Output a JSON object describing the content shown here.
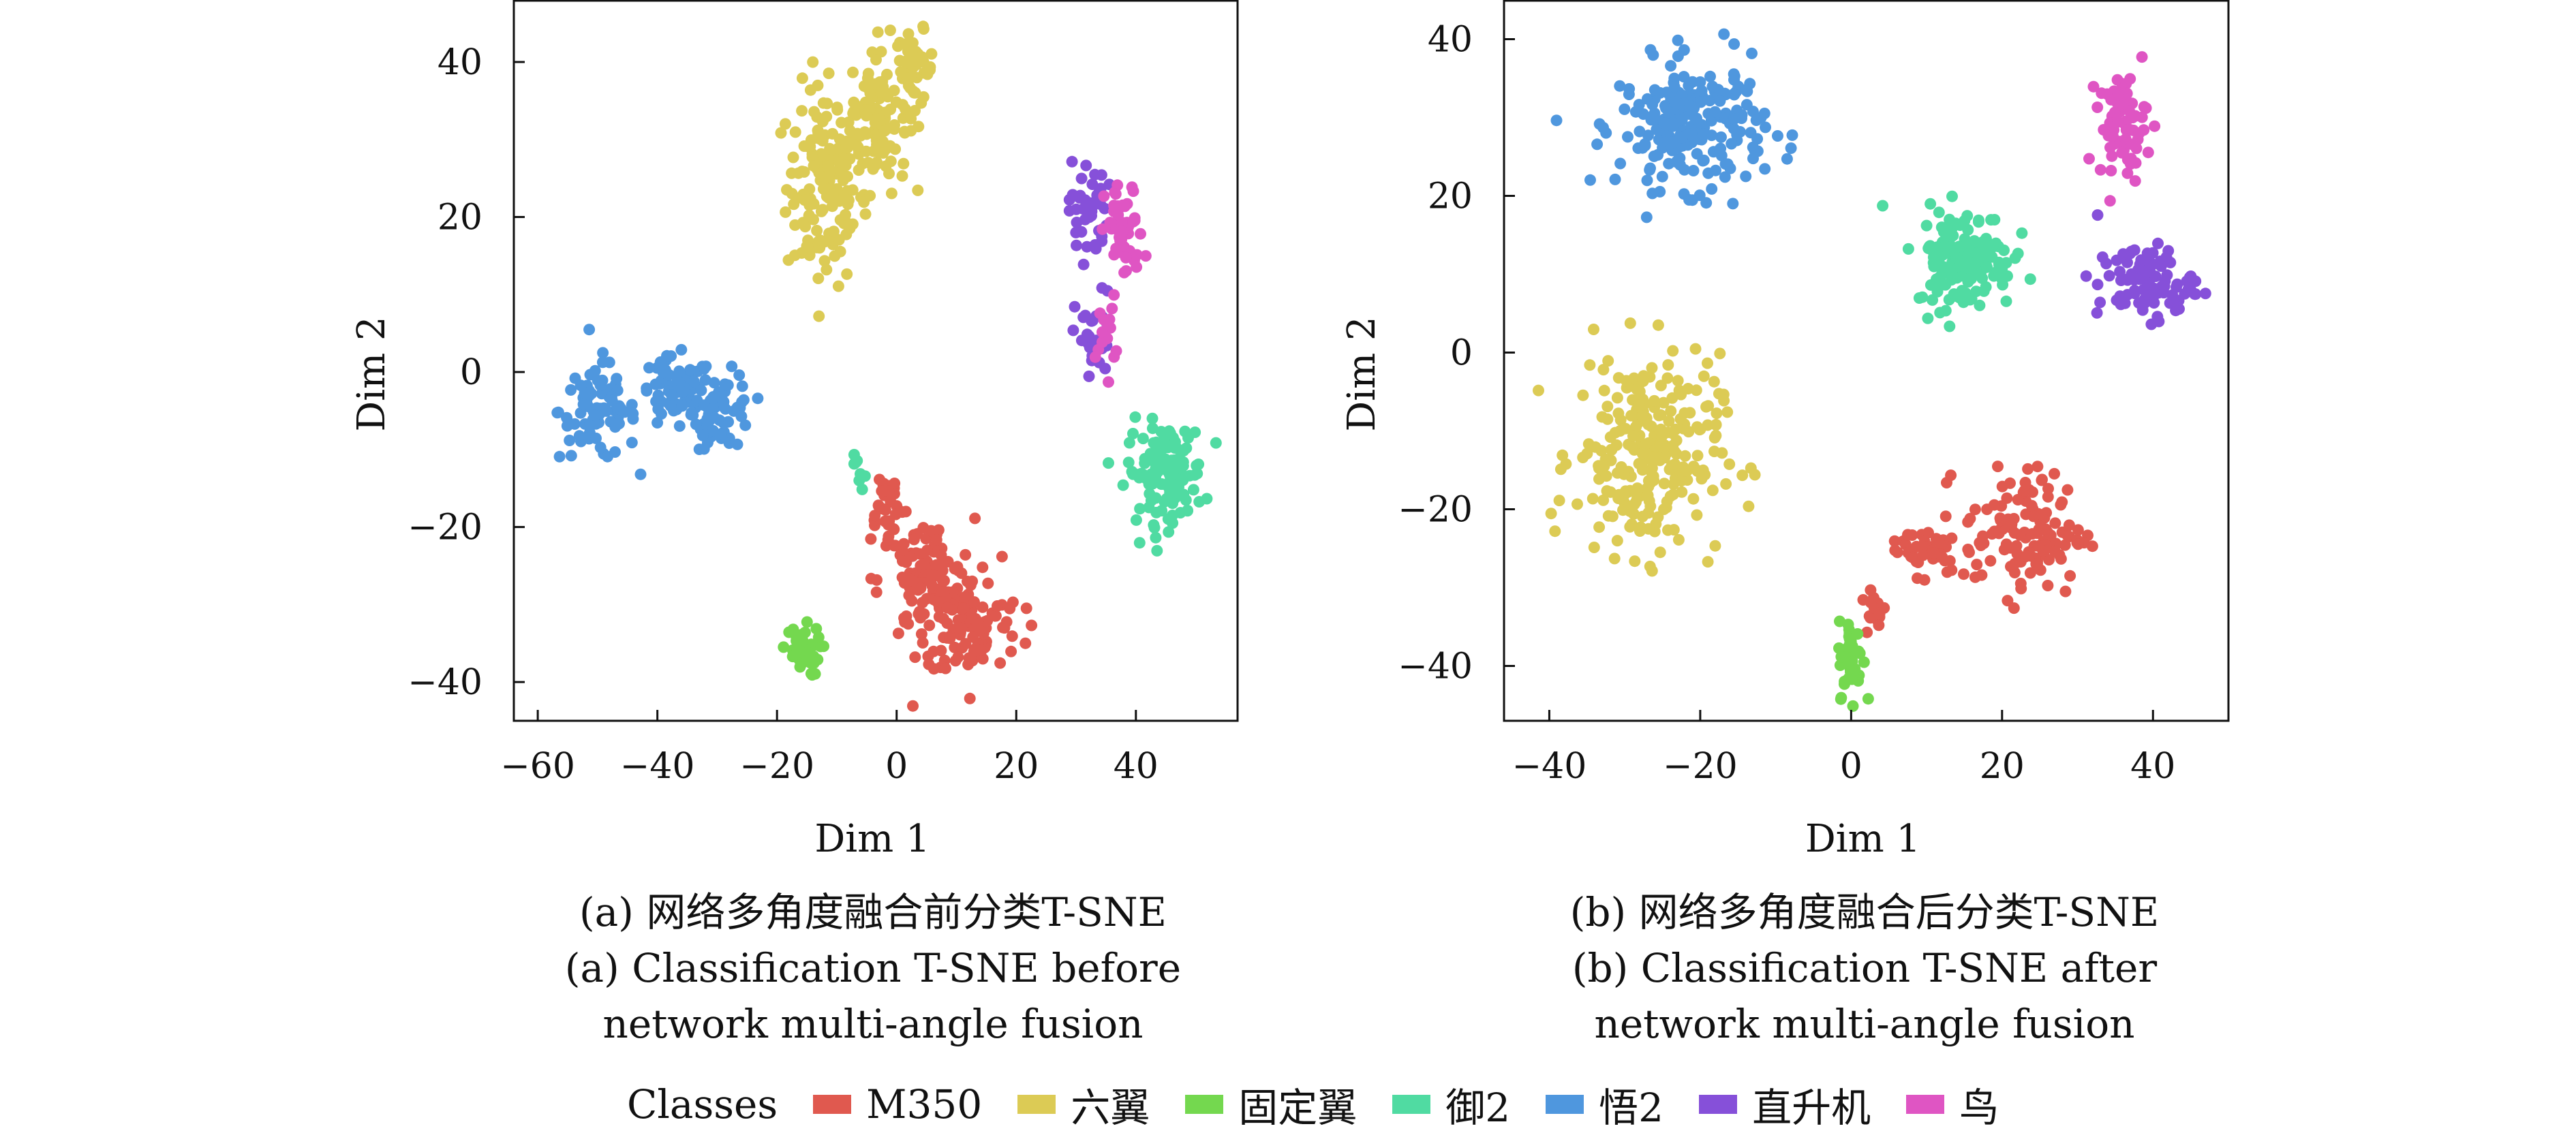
{
  "colors": {
    "M350": "#e0594f",
    "六翼": "#dccb55",
    "固定翼": "#74d84f",
    "御2": "#50dba2",
    "悟2": "#4f97de",
    "直升机": "#8650d9",
    "鸟": "#df55c3"
  },
  "legend": {
    "title": "Classes",
    "items": [
      "M350",
      "六翼",
      "固定翼",
      "御2",
      "悟2",
      "直升机",
      "鸟"
    ]
  },
  "captions": {
    "a": {
      "zh": "(a) 网络多角度融合前分类T-SNE",
      "en1": "(a) Classification T-SNE before",
      "en2": "network multi-angle fusion"
    },
    "b": {
      "zh": "(b) 网络多角度融合后分类T-SNE",
      "en1": "(b) Classification T-SNE after",
      "en2": "network multi-angle fusion"
    }
  },
  "chart_data": [
    {
      "type": "scatter",
      "xlabel": "Dim 1",
      "ylabel": "Dim 2",
      "xlim": [
        -64,
        57
      ],
      "ylim": [
        -45,
        48
      ],
      "xticks": [
        -60,
        -40,
        -20,
        0,
        20,
        40
      ],
      "yticks": [
        -40,
        -20,
        0,
        20,
        40
      ],
      "xtick_labels": [
        "−60",
        "−40",
        "−20",
        "0",
        "20",
        "40"
      ],
      "ytick_labels": [
        "−40",
        "−20",
        "0",
        "20",
        "40"
      ],
      "grid": false,
      "clusters": [
        {
          "name": "六翼",
          "center": [
            -12,
            24
          ],
          "spread": [
            4,
            8
          ],
          "count": 150
        },
        {
          "name": "六翼",
          "center": [
            -3,
            33
          ],
          "spread": [
            3,
            6
          ],
          "count": 110
        },
        {
          "name": "六翼",
          "center": [
            3,
            39
          ],
          "spread": [
            2,
            3
          ],
          "count": 40
        },
        {
          "name": "悟2",
          "center": [
            -50,
            -5
          ],
          "spread": [
            4,
            4
          ],
          "count": 80
        },
        {
          "name": "悟2",
          "center": [
            -37,
            -3
          ],
          "spread": [
            4,
            3
          ],
          "count": 70
        },
        {
          "name": "悟2",
          "center": [
            -29,
            -5
          ],
          "spread": [
            3,
            3
          ],
          "count": 60
        },
        {
          "name": "M350",
          "center": [
            5,
            -27
          ],
          "spread": [
            5,
            5
          ],
          "count": 120
        },
        {
          "name": "M350",
          "center": [
            13,
            -33
          ],
          "spread": [
            5,
            4
          ],
          "count": 90
        },
        {
          "name": "M350",
          "center": [
            -2,
            -17
          ],
          "spread": [
            2,
            3
          ],
          "count": 30
        },
        {
          "name": "固定翼",
          "center": [
            -16,
            -36
          ],
          "spread": [
            2,
            2
          ],
          "count": 40
        },
        {
          "name": "直升机",
          "center": [
            32,
            21
          ],
          "spread": [
            2,
            4
          ],
          "count": 40
        },
        {
          "name": "直升机",
          "center": [
            33,
            4
          ],
          "spread": [
            2,
            4
          ],
          "count": 35
        },
        {
          "name": "鸟",
          "center": [
            38,
            18
          ],
          "spread": [
            2,
            4
          ],
          "count": 50
        },
        {
          "name": "鸟",
          "center": [
            35,
            5
          ],
          "spread": [
            1,
            3
          ],
          "count": 15
        },
        {
          "name": "御2",
          "center": [
            45,
            -13
          ],
          "spread": [
            4,
            4
          ],
          "count": 130
        },
        {
          "name": "御2",
          "center": [
            -6,
            -14
          ],
          "spread": [
            1,
            2
          ],
          "count": 8
        }
      ]
    },
    {
      "type": "scatter",
      "xlabel": "Dim 1",
      "ylabel": "Dim 2",
      "xlim": [
        -46,
        50
      ],
      "ylim": [
        -47,
        45
      ],
      "xticks": [
        -40,
        -20,
        0,
        20,
        40
      ],
      "yticks": [
        -40,
        -20,
        0,
        20,
        40
      ],
      "xtick_labels": [
        "−40",
        "−20",
        "0",
        "20",
        "40"
      ],
      "ytick_labels": [
        "−40",
        "−20",
        "0",
        "20",
        "40"
      ],
      "grid": false,
      "clusters": [
        {
          "name": "悟2",
          "center": [
            -21,
            29
          ],
          "spread": [
            6,
            5
          ],
          "count": 230
        },
        {
          "name": "六翼",
          "center": [
            -27,
            -13
          ],
          "spread": [
            6,
            8
          ],
          "count": 260
        },
        {
          "name": "M350",
          "center": [
            23,
            -23
          ],
          "spread": [
            5,
            5
          ],
          "count": 130
        },
        {
          "name": "M350",
          "center": [
            10,
            -25
          ],
          "spread": [
            3,
            2
          ],
          "count": 40
        },
        {
          "name": "M350",
          "center": [
            3,
            -33
          ],
          "spread": [
            1,
            2
          ],
          "count": 15
        },
        {
          "name": "固定翼",
          "center": [
            0,
            -39
          ],
          "spread": [
            1,
            3
          ],
          "count": 50
        },
        {
          "name": "御2",
          "center": [
            15,
            12
          ],
          "spread": [
            4,
            4
          ],
          "count": 160
        },
        {
          "name": "鸟",
          "center": [
            36,
            29
          ],
          "spread": [
            2,
            4
          ],
          "count": 70
        },
        {
          "name": "直升机",
          "center": [
            39,
            9
          ],
          "spread": [
            4,
            3
          ],
          "count": 90
        }
      ]
    }
  ]
}
